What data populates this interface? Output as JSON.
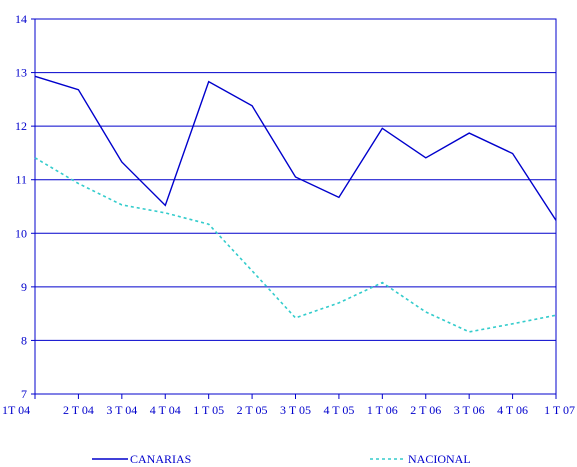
{
  "chart_data": {
    "type": "line",
    "title": "",
    "xlabel": "",
    "ylabel": "",
    "categories": [
      "1T 04",
      "2 T 04",
      "3 T 04",
      "4 T 04",
      "1 T 05",
      "2 T 05",
      "3 T 05",
      "4 T 05",
      "1 T 06",
      "2 T 06",
      "3 T 06",
      "4 T 06",
      "1 T 07"
    ],
    "ylim": [
      7,
      14
    ],
    "yticks": [
      7,
      8,
      9,
      10,
      11,
      12,
      13,
      14
    ],
    "grid": true,
    "legend_position": "bottom",
    "series": [
      {
        "name": "CANARIAS",
        "style": "solid",
        "color": "#0000cc",
        "values": [
          12.93,
          12.68,
          11.33,
          10.52,
          12.83,
          12.38,
          11.05,
          10.67,
          11.96,
          11.41,
          11.87,
          11.49,
          10.24
        ]
      },
      {
        "name": "NACIONAL",
        "style": "dashed",
        "color": "#33cccc",
        "values": [
          11.41,
          10.93,
          10.53,
          10.38,
          10.17,
          9.3,
          8.42,
          8.7,
          9.08,
          8.53,
          8.16,
          8.31,
          8.47
        ]
      }
    ]
  }
}
